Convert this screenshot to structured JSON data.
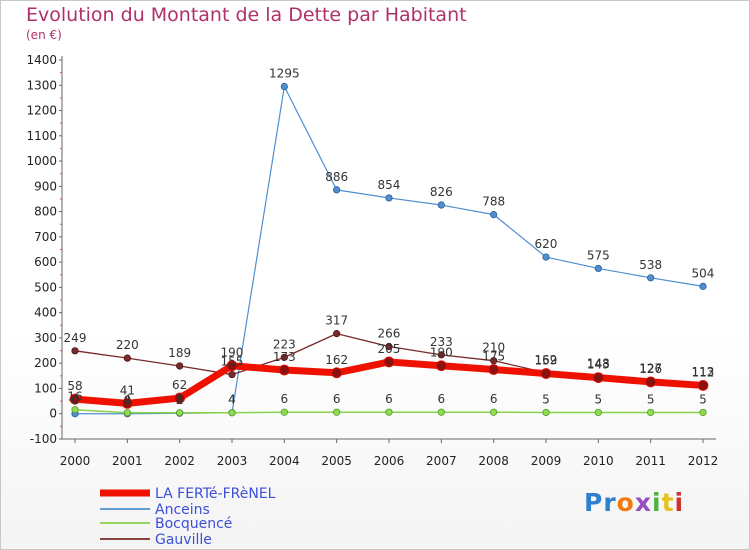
{
  "chart_data": {
    "type": "line",
    "title": "Evolution du Montant de la Dette par Habitant",
    "subtitle": "(en €)",
    "x": [
      "2000",
      "2001",
      "2002",
      "2003",
      "2004",
      "2005",
      "2006",
      "2007",
      "2008",
      "2009",
      "2010",
      "2011",
      "2012"
    ],
    "yticks": [
      "-100",
      "0",
      "100",
      "200",
      "300",
      "400",
      "500",
      "600",
      "700",
      "800",
      "900",
      "1000",
      "1100",
      "1200",
      "1300",
      "1400"
    ],
    "ylim": [
      -100,
      1400
    ],
    "grid": false,
    "legend_position": "bottom-left",
    "series": [
      {
        "name": "LA FERTé-FRèNEL",
        "color": "#ee1100",
        "values": [
          58,
          41,
          62,
          190,
          173,
          162,
          205,
          190,
          175,
          159,
          143,
          126,
          112
        ]
      },
      {
        "name": "Anceins",
        "color": "#4f8ecf",
        "values": [
          0,
          0,
          2,
          4,
          1295,
          886,
          854,
          826,
          788,
          620,
          575,
          538,
          504
        ]
      },
      {
        "name": "Bocquencé",
        "color": "#86d24a",
        "values": [
          16,
          4,
          4,
          4,
          6,
          6,
          6,
          6,
          6,
          5,
          5,
          5,
          5
        ]
      },
      {
        "name": "Gauville",
        "color": "#7a2a2a",
        "values": [
          249,
          220,
          189,
          155,
          223,
          317,
          266,
          233,
          210,
          162,
          148,
          127,
          113
        ]
      }
    ]
  },
  "brand": {
    "logo_text": "Proxiti"
  }
}
